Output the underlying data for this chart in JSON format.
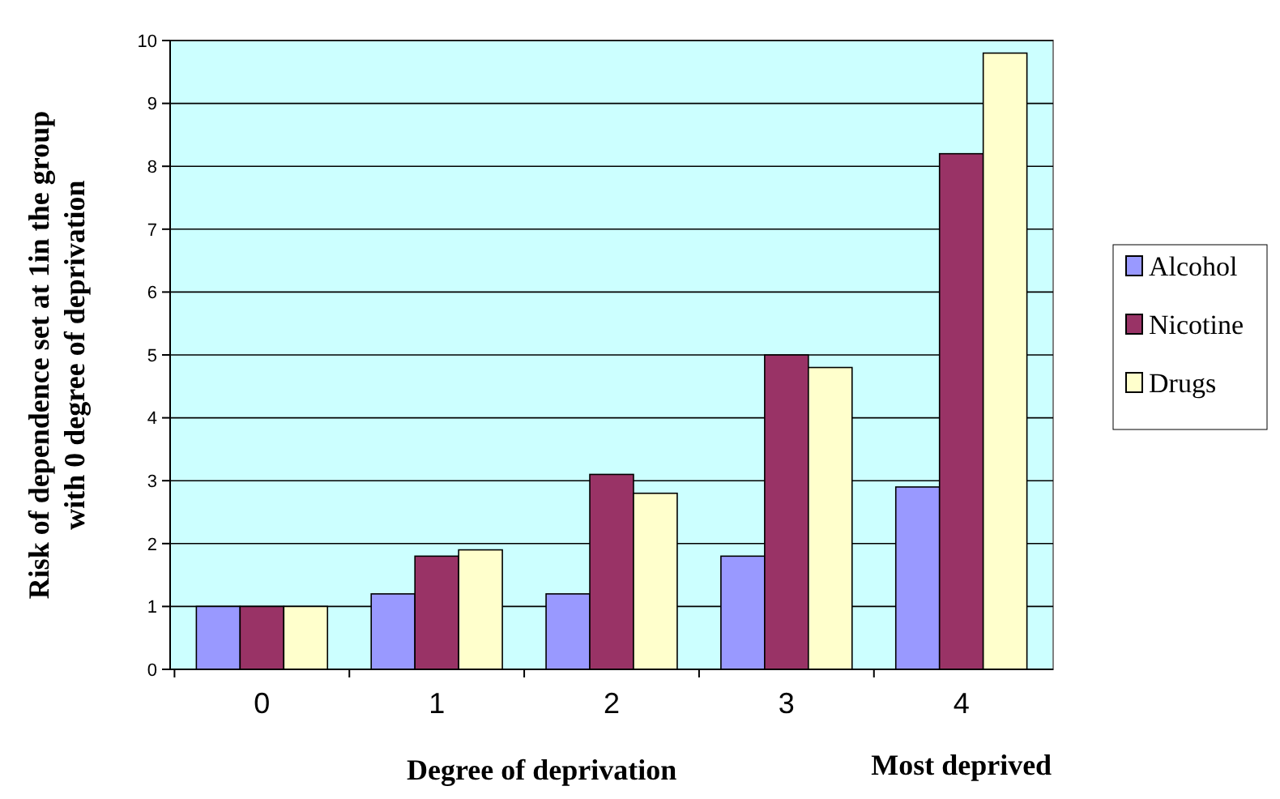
{
  "chart_data": {
    "type": "bar",
    "categories": [
      "0",
      "1",
      "2",
      "3",
      "4"
    ],
    "xlabel": "Degree of deprivation",
    "ylabel": "Risk of dependence set at 1in the group\nwith 0 degree of deprivation",
    "annotations": [
      "Most deprived"
    ],
    "series": [
      {
        "name": "Alcohol",
        "color": "#9999ff",
        "values": [
          1,
          1.2,
          1.2,
          1.8,
          2.9
        ]
      },
      {
        "name": "Nicotine",
        "color": "#993366",
        "values": [
          1,
          1.8,
          3.1,
          5.0,
          8.2
        ]
      },
      {
        "name": "Drugs",
        "color": "#ffffcc",
        "values": [
          1,
          1.9,
          2.8,
          4.8,
          9.8
        ]
      }
    ],
    "ylim": [
      0,
      10
    ],
    "yticks": [
      0,
      1,
      2,
      3,
      4,
      5,
      6,
      7,
      8,
      9,
      10
    ],
    "grid": "y",
    "legend": "right"
  }
}
